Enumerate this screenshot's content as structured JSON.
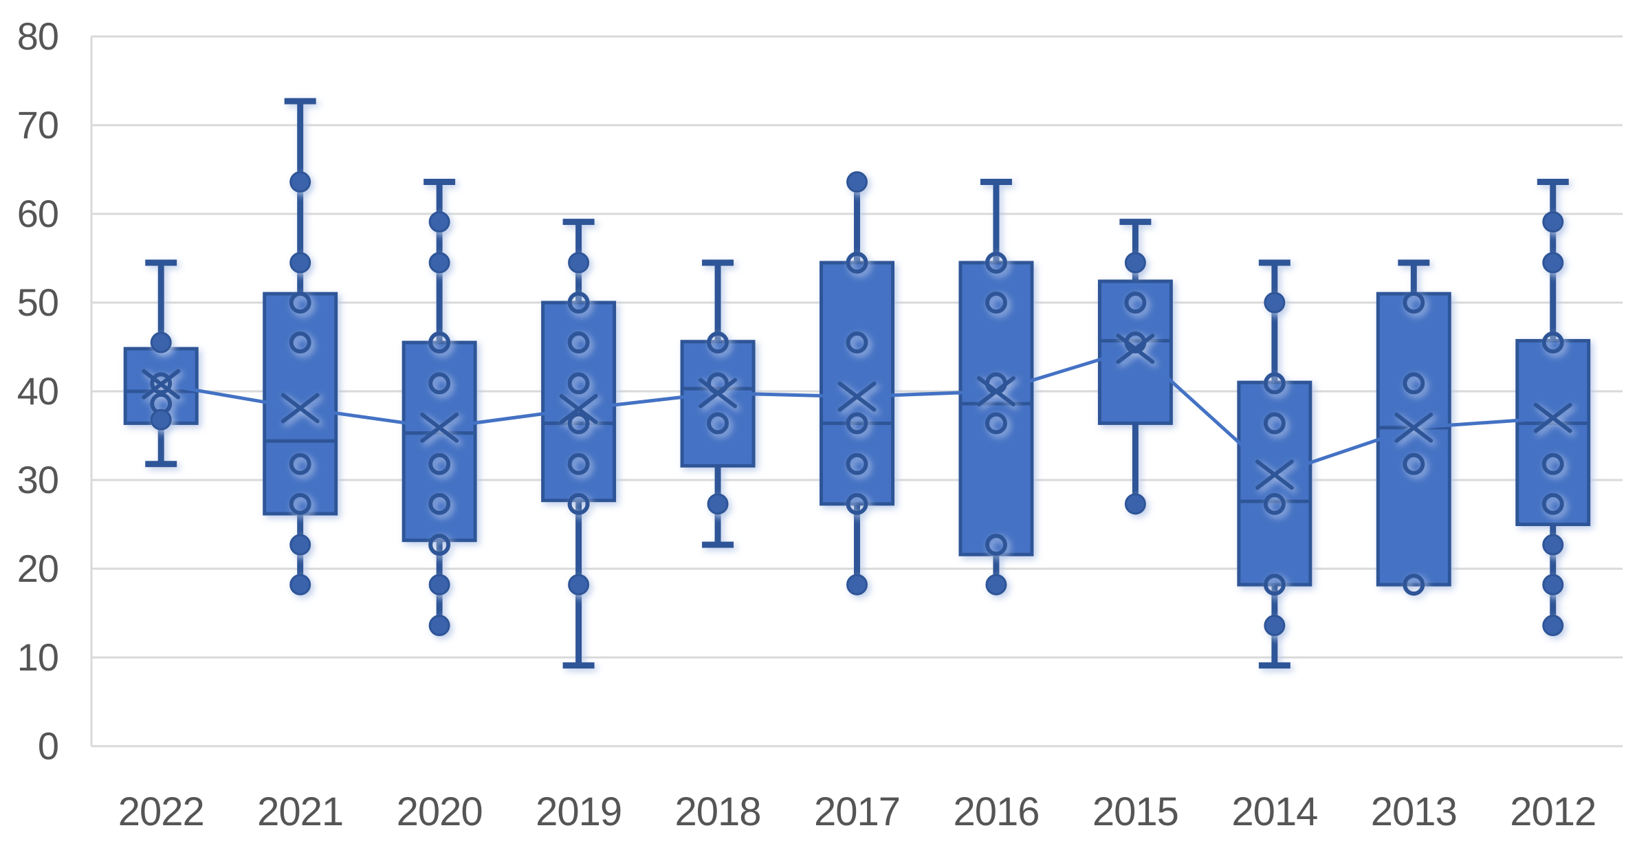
{
  "chart_data": {
    "type": "box",
    "title": "",
    "xlabel": "",
    "ylabel": "",
    "categories": [
      "2022",
      "2021",
      "2020",
      "2019",
      "2018",
      "2017",
      "2016",
      "2015",
      "2014",
      "2013",
      "2012"
    ],
    "ylim": [
      0,
      80
    ],
    "yticks": [
      0,
      10,
      20,
      30,
      40,
      50,
      60,
      70,
      80
    ],
    "ytick_labels": [
      "0",
      "10",
      "20",
      "30",
      "40",
      "50",
      "60",
      "70",
      "80"
    ],
    "grid": true,
    "legend_position": "none",
    "mean_line": {
      "name": "mean-connector",
      "values": [
        40.8,
        38.1,
        35.9,
        38.0,
        39.8,
        39.4,
        40.0,
        44.8,
        30.6,
        35.9,
        37.0
      ]
    },
    "boxes": [
      {
        "category": "2022",
        "whisker_low": 31.8,
        "q1": 36.4,
        "median": 40.0,
        "q3": 44.8,
        "whisker_high": 54.5,
        "mean": 40.8,
        "cap_top": true,
        "cap_bottom": true,
        "filled_points": [
          45.5,
          36.8
        ],
        "open_points": [
          40.9,
          38.6
        ]
      },
      {
        "category": "2021",
        "whisker_low": 18.2,
        "q1": 26.2,
        "median": 34.4,
        "q3": 51.0,
        "whisker_high": 72.7,
        "mean": 38.1,
        "cap_top": true,
        "cap_bottom": false,
        "filled_points": [
          63.6,
          54.5,
          22.7,
          18.2
        ],
        "open_points": [
          50.0,
          45.5,
          31.8,
          27.3
        ]
      },
      {
        "category": "2020",
        "whisker_low": 13.6,
        "q1": 23.2,
        "median": 35.3,
        "q3": 45.5,
        "whisker_high": 63.6,
        "mean": 35.9,
        "cap_top": true,
        "cap_bottom": false,
        "filled_points": [
          59.1,
          54.5,
          18.2,
          13.6
        ],
        "open_points": [
          45.5,
          40.9,
          31.8,
          27.3,
          22.7
        ]
      },
      {
        "category": "2019",
        "whisker_low": 9.1,
        "q1": 27.7,
        "median": 36.4,
        "q3": 50.0,
        "whisker_high": 59.1,
        "mean": 38.0,
        "cap_top": true,
        "cap_bottom": true,
        "filled_points": [
          54.5,
          18.2
        ],
        "open_points": [
          50.0,
          45.5,
          40.9,
          36.4,
          31.8,
          27.3
        ]
      },
      {
        "category": "2018",
        "whisker_low": 22.7,
        "q1": 31.6,
        "median": 40.3,
        "q3": 45.6,
        "whisker_high": 54.5,
        "mean": 39.8,
        "cap_top": true,
        "cap_bottom": true,
        "filled_points": [
          27.3
        ],
        "open_points": [
          45.5,
          40.9,
          36.4
        ]
      },
      {
        "category": "2017",
        "whisker_low": 18.2,
        "q1": 27.3,
        "median": 36.4,
        "q3": 54.5,
        "whisker_high": 63.6,
        "mean": 39.4,
        "cap_top": false,
        "cap_bottom": false,
        "filled_points": [
          63.6,
          18.2
        ],
        "open_points": [
          54.5,
          45.5,
          36.4,
          31.8,
          27.3
        ]
      },
      {
        "category": "2016",
        "whisker_low": 18.2,
        "q1": 21.6,
        "median": 38.6,
        "q3": 54.5,
        "whisker_high": 63.6,
        "mean": 40.0,
        "cap_top": true,
        "cap_bottom": false,
        "filled_points": [
          18.2
        ],
        "open_points": [
          54.5,
          50.0,
          40.9,
          36.4,
          22.7
        ]
      },
      {
        "category": "2015",
        "whisker_low": 27.3,
        "q1": 36.4,
        "median": 45.7,
        "q3": 52.4,
        "whisker_high": 59.1,
        "mean": 44.8,
        "cap_top": true,
        "cap_bottom": false,
        "filled_points": [
          54.5,
          27.3
        ],
        "open_points": [
          50.0,
          45.5
        ]
      },
      {
        "category": "2014",
        "whisker_low": 9.1,
        "q1": 18.2,
        "median": 27.6,
        "q3": 41.0,
        "whisker_high": 54.5,
        "mean": 30.6,
        "cap_top": true,
        "cap_bottom": true,
        "filled_points": [
          50.0,
          13.6
        ],
        "open_points": [
          40.9,
          36.4,
          27.3,
          18.2
        ]
      },
      {
        "category": "2013",
        "whisker_low": 18.2,
        "q1": 18.2,
        "median": 35.9,
        "q3": 51.0,
        "whisker_high": 54.5,
        "mean": 35.9,
        "cap_top": true,
        "cap_bottom": false,
        "filled_points": [],
        "open_points": [
          50.0,
          40.9,
          31.8,
          18.2
        ]
      },
      {
        "category": "2012",
        "whisker_low": 13.6,
        "q1": 25.0,
        "median": 36.4,
        "q3": 45.7,
        "whisker_high": 63.6,
        "mean": 37.0,
        "cap_top": true,
        "cap_bottom": false,
        "filled_points": [
          59.1,
          54.5,
          22.7,
          18.2,
          13.6
        ],
        "open_points": [
          45.5,
          31.8,
          27.3
        ]
      }
    ],
    "colors": {
      "box_fill": "#4472C4",
      "box_border": "#2F5597",
      "filled_point": "#3A63AB",
      "mean_line": "#4472C4",
      "mean_marker": "#2F5597",
      "grid": "#D9D9D9",
      "axis_line": "#D9D9D9",
      "axis_label": "#555555",
      "halo": "#B8C9E8",
      "background": "#FFFFFF"
    }
  }
}
